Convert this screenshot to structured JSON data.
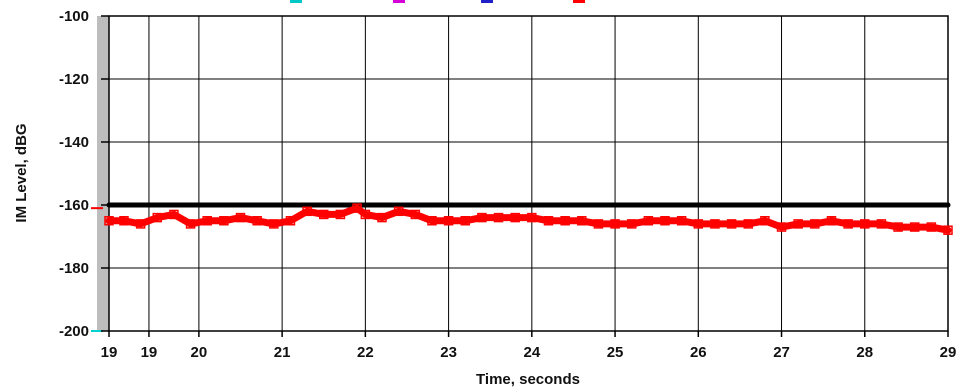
{
  "chart_data": {
    "type": "line",
    "title": "",
    "xlabel": "Time, seconds",
    "ylabel": "IM Level, dBG",
    "xlim": [
      18.92,
      29.0
    ],
    "ylim": [
      -200,
      -100
    ],
    "grid": true,
    "y_ticks": [
      -100,
      -120,
      -140,
      -160,
      -180,
      -200
    ],
    "y_tick_labels": [
      "-100",
      "-120",
      "-140",
      "-160",
      "-180",
      "-200"
    ],
    "x_ticks": [
      {
        "value": 18.92,
        "label": "19"
      },
      {
        "value": 19.4,
        "label": "19"
      },
      {
        "value": 20,
        "label": "20"
      },
      {
        "value": 21,
        "label": "21"
      },
      {
        "value": 22,
        "label": "22"
      },
      {
        "value": 23,
        "label": "23"
      },
      {
        "value": 24,
        "label": "24"
      },
      {
        "value": 25,
        "label": "25"
      },
      {
        "value": 26,
        "label": "26"
      },
      {
        "value": 27,
        "label": "27"
      },
      {
        "value": 28,
        "label": "28"
      },
      {
        "value": 29,
        "label": "29"
      }
    ],
    "series": [
      {
        "color": "#000000",
        "x": [
          18.92,
          29.0
        ],
        "y": [
          -160,
          -160
        ]
      },
      {
        "color": "#ff0000",
        "x": [
          18.92,
          19.1,
          19.3,
          19.5,
          19.7,
          19.9,
          20.1,
          20.3,
          20.5,
          20.7,
          20.9,
          21.1,
          21.3,
          21.5,
          21.7,
          21.9,
          22.0,
          22.2,
          22.4,
          22.6,
          22.8,
          23.0,
          23.2,
          23.4,
          23.6,
          23.8,
          24.0,
          24.2,
          24.4,
          24.6,
          24.8,
          25.0,
          25.2,
          25.4,
          25.6,
          25.8,
          26.0,
          26.2,
          26.4,
          26.6,
          26.8,
          27.0,
          27.2,
          27.4,
          27.6,
          27.8,
          28.0,
          28.2,
          28.4,
          28.6,
          28.8,
          29.0
        ],
        "y": [
          -165,
          -165,
          -166,
          -164,
          -163,
          -166,
          -165,
          -165,
          -164,
          -165,
          -166,
          -165,
          -162,
          -163,
          -163,
          -161,
          -163,
          -164,
          -162,
          -163,
          -165,
          -165,
          -165,
          -164,
          -164,
          -164,
          -164,
          -165,
          -165,
          -165,
          -166,
          -166,
          -166,
          -165,
          -165,
          -165,
          -166,
          -166,
          -166,
          -166,
          -165,
          -167,
          -166,
          -166,
          -165,
          -166,
          -166,
          -166,
          -167,
          -167,
          -167,
          -168
        ]
      }
    ],
    "axis_markers": [
      {
        "y": -161,
        "color": "#ff0000"
      },
      {
        "y": -200,
        "color": "#00d0d0"
      }
    ],
    "legend_colors": [
      "#00c8c8",
      "#d800d8",
      "#2020c8",
      "#ff0000"
    ]
  }
}
